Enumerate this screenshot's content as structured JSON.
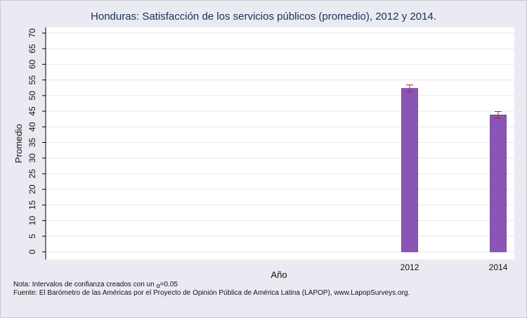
{
  "chart_data": {
    "type": "bar",
    "title": "Honduras: Satisfacción de los servicios públicos (promedio), 2012 y 2014.",
    "xlabel": "Año",
    "ylabel": "Promedio",
    "categories": [
      "2012",
      "2014"
    ],
    "series": [
      {
        "values": [
          52.3,
          43.8
        ],
        "ci_low": [
          51.2,
          42.7
        ],
        "ci_high": [
          53.4,
          44.9
        ],
        "color": "#8a55b5"
      }
    ],
    "ylim": [
      0,
      70
    ],
    "yticks": [
      0,
      5,
      10,
      15,
      20,
      25,
      30,
      35,
      40,
      45,
      50,
      55,
      60,
      65,
      70
    ],
    "grid": true,
    "errorbar_color": "#9a2a3a"
  },
  "notes": {
    "note_prefix": "Nota: Intervalos de confianza creados con un ",
    "alpha_symbol": "α",
    "note_suffix": "=0.05",
    "source": "Fuente: El Barómetro de las Américas por el Proyecto de Opinión Pública de América Latina (LAPOP), www.LapopSurveys.org."
  },
  "colors": {
    "background": "#eaeaf2",
    "plot_background": "#ffffff",
    "title": "#1a2f5a"
  }
}
